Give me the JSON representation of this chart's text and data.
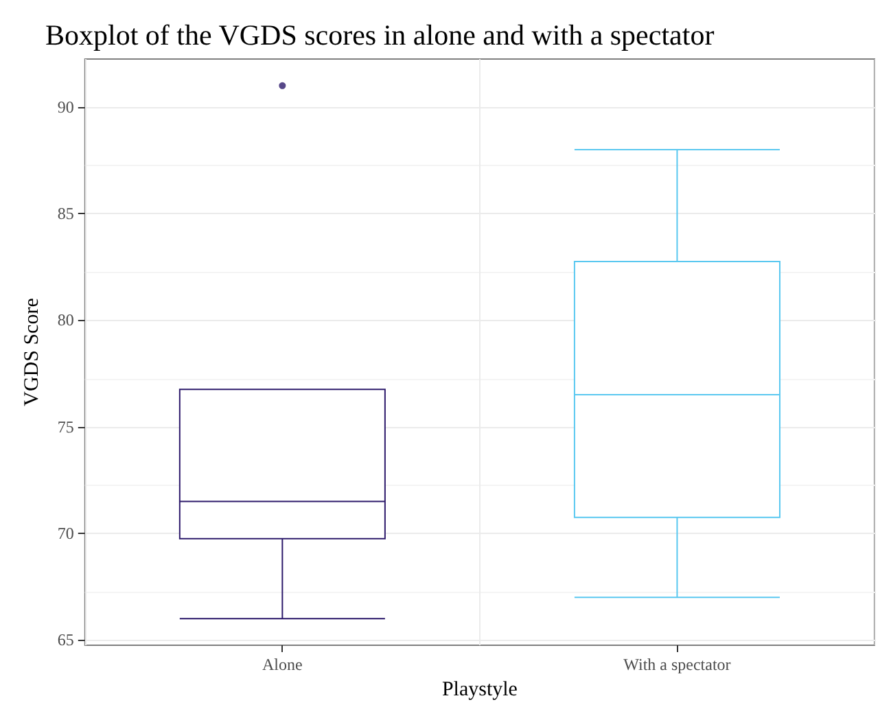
{
  "chart_data": {
    "type": "box",
    "title": "Boxplot of the VGDS scores in alone and with a spectator",
    "xlabel": "Playstyle",
    "ylabel": "VGDS Score",
    "categories": [
      "Alone",
      "With a spectator"
    ],
    "boxes": [
      {
        "low": 66,
        "q1": 69.75,
        "median": 71.5,
        "q3": 76.75,
        "high": 76.75,
        "outliers": [
          91
        ]
      },
      {
        "low": 67,
        "q1": 70.75,
        "median": 76.5,
        "q3": 82.75,
        "high": 88
      }
    ],
    "colors": [
      "#2d1a6b",
      "#5ac8f0"
    ],
    "ylim": [
      64.75,
      92.25
    ],
    "yticks": [
      65,
      70,
      75,
      80,
      85,
      90
    ],
    "grid": true
  }
}
